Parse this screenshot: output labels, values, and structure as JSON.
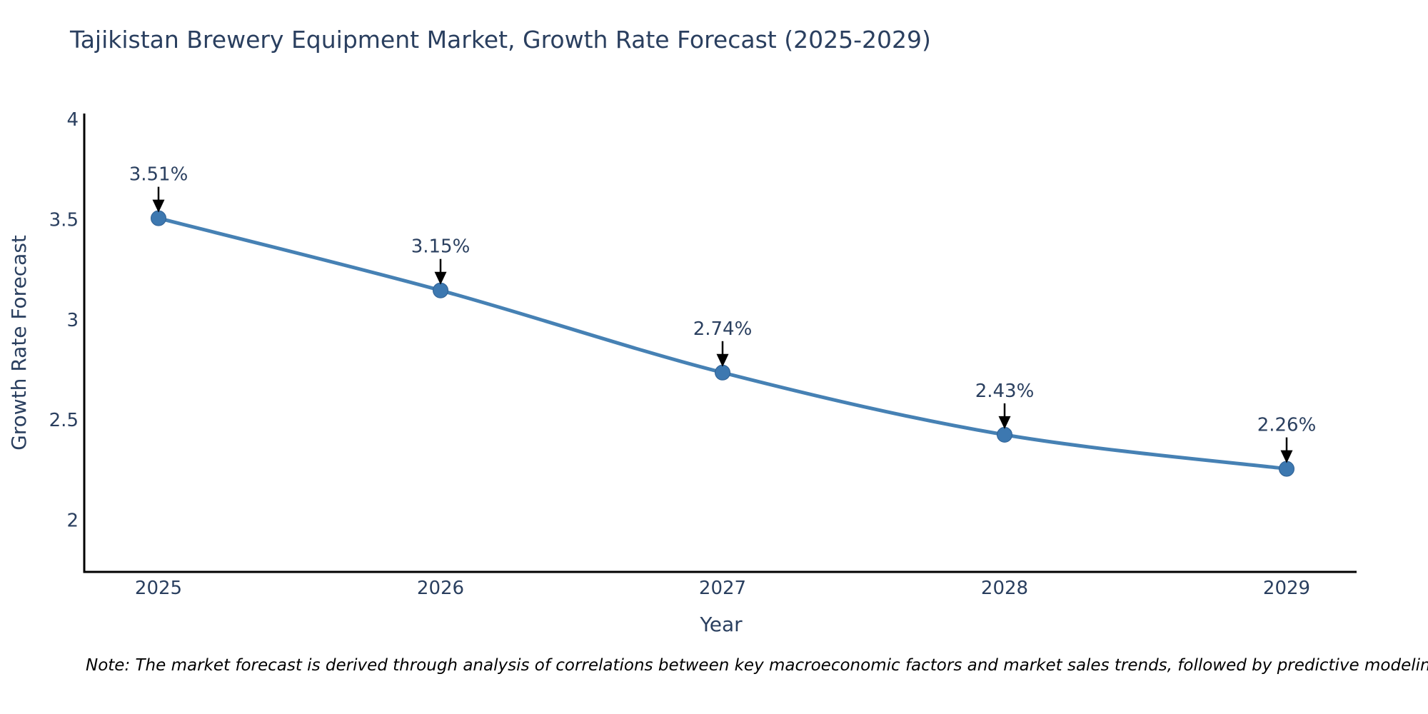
{
  "title": "Tajikistan Brewery Equipment Market, Growth Rate Forecast (2025-2029)",
  "note": "Note: The market forecast is derived through analysis of correlations between key macroeconomic factors and market sales trends, followed by predictive modeling to project future sales",
  "chart_data": {
    "type": "line",
    "title": "Tajikistan Brewery Equipment Market, Growth Rate Forecast (2025-2029)",
    "x": [
      "2025",
      "2026",
      "2027",
      "2028",
      "2029"
    ],
    "series": [
      {
        "name": "Growth Rate Forecast",
        "values": [
          3.51,
          3.15,
          2.74,
          2.43,
          2.26
        ],
        "point_labels": [
          "3.51%",
          "3.15%",
          "2.74%",
          "2.43%",
          "2.26%"
        ]
      }
    ],
    "xlabel": "Year",
    "ylabel": "Growth Rate Forecast",
    "yticks": [
      4,
      3.5,
      3,
      2.5,
      2
    ],
    "ylim": [
      1.74,
      4.03
    ],
    "grid": false,
    "legend": "none",
    "line_shape": "spline",
    "colors": {
      "line": "#4681b4",
      "marker": "#3d78b0",
      "marker_edge": "#2f6093",
      "axis_line": "#000000",
      "tick_label": "#2a3f5f",
      "axis_title": "#2a3f5f",
      "annotation_text": "#2a3f5f",
      "annotation_arrow": "#000000",
      "background": "#ffffff"
    }
  }
}
